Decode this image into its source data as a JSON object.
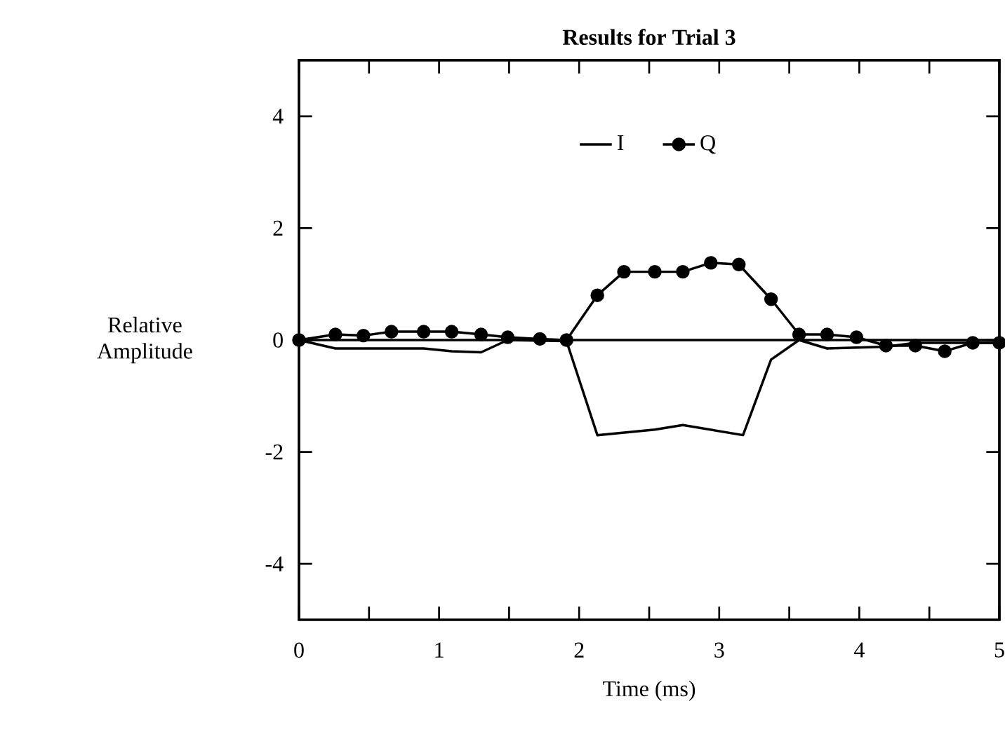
{
  "chart_data": {
    "type": "line",
    "title": "Results for Trial 3",
    "xlabel": "Time (ms)",
    "ylabel": "Relative Amplitude",
    "legend": "top",
    "xlim": [
      0,
      5
    ],
    "ylim": [
      -5,
      5
    ],
    "xticks": [
      0,
      1,
      2,
      3,
      4,
      5
    ],
    "yticks": [
      -4,
      -2,
      0,
      2,
      4
    ],
    "ref_lines": [
      {
        "axis": "y",
        "value": 0
      }
    ],
    "series": [
      {
        "name": "I",
        "color": "#000000",
        "marker": "none",
        "x": [
          0,
          0.26,
          0.89,
          1.09,
          1.3,
          1.49,
          1.91,
          2.13,
          2.54,
          2.74,
          3.17,
          3.37,
          3.57,
          3.77,
          4.19,
          4.4,
          5
        ],
        "values": [
          0,
          -0.15,
          -0.15,
          -0.2,
          -0.22,
          0,
          -0.02,
          -1.7,
          -1.6,
          -1.52,
          -1.7,
          -0.35,
          0,
          -0.15,
          -0.12,
          -0.05,
          -0.05
        ]
      },
      {
        "name": "Q",
        "color": "#000000",
        "marker": "circle",
        "x": [
          0,
          0.26,
          0.46,
          0.66,
          0.89,
          1.09,
          1.3,
          1.49,
          1.72,
          1.91,
          2.13,
          2.32,
          2.54,
          2.74,
          2.94,
          3.14,
          3.37,
          3.57,
          3.77,
          3.98,
          4.19,
          4.4,
          4.61,
          4.81,
          5
        ],
        "values": [
          0,
          0.1,
          0.08,
          0.15,
          0.15,
          0.15,
          0.1,
          0.05,
          0.02,
          0,
          0.8,
          1.22,
          1.22,
          1.22,
          1.38,
          1.35,
          0.73,
          0.1,
          0.1,
          0.05,
          -0.1,
          -0.1,
          -0.2,
          -0.05,
          -0.05
        ]
      }
    ]
  }
}
